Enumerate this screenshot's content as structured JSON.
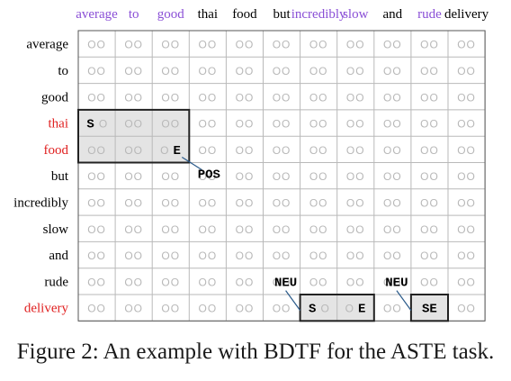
{
  "tokens": [
    "average",
    "to",
    "good",
    "thai",
    "food",
    "but",
    "incredibly",
    "slow",
    "and",
    "rude",
    "delivery"
  ],
  "top_token_colors": [
    "#8a4fd6",
    "#8a4fd6",
    "#8a4fd6",
    "#000000",
    "#000000",
    "#000000",
    "#8a4fd6",
    "#8a4fd6",
    "#000000",
    "#8a4fd6",
    "#000000"
  ],
  "left_token_colors": [
    "#000000",
    "#000000",
    "#000000",
    "#e02020",
    "#e02020",
    "#000000",
    "#000000",
    "#000000",
    "#000000",
    "#000000",
    "#e02020"
  ],
  "empty_cell_text": "OO",
  "highlight_blocks": [
    {
      "name": "aspect-block-thai-food",
      "rows": [
        3,
        4
      ],
      "cols": [
        0,
        2
      ],
      "cell_marks": [
        {
          "row": 3,
          "col": 0,
          "mark": "S"
        },
        {
          "row": 4,
          "col": 2,
          "mark": "E"
        }
      ],
      "label": "POS"
    },
    {
      "name": "opinion-block-incredibly-slow",
      "rows": [
        10,
        10
      ],
      "cols": [
        6,
        7
      ],
      "cell_marks": [
        {
          "row": 10,
          "col": 6,
          "mark": "S"
        },
        {
          "row": 10,
          "col": 7,
          "mark": "E"
        }
      ],
      "label": "NEU"
    },
    {
      "name": "opinion-block-rude",
      "rows": [
        10,
        10
      ],
      "cols": [
        9,
        9
      ],
      "cell_marks": [
        {
          "row": 10,
          "col": 9,
          "mark": "SE"
        }
      ],
      "label": "NEU"
    }
  ],
  "caption": "Figure 2: An example with BDTF for the ASTE task.",
  "colors": {
    "highlight_fill": "#e4e4e4",
    "grid_line": "#b9b9b9",
    "block_border": "#222222",
    "connector": "#2a5a8a",
    "faint_text": "#b8b8b8"
  }
}
